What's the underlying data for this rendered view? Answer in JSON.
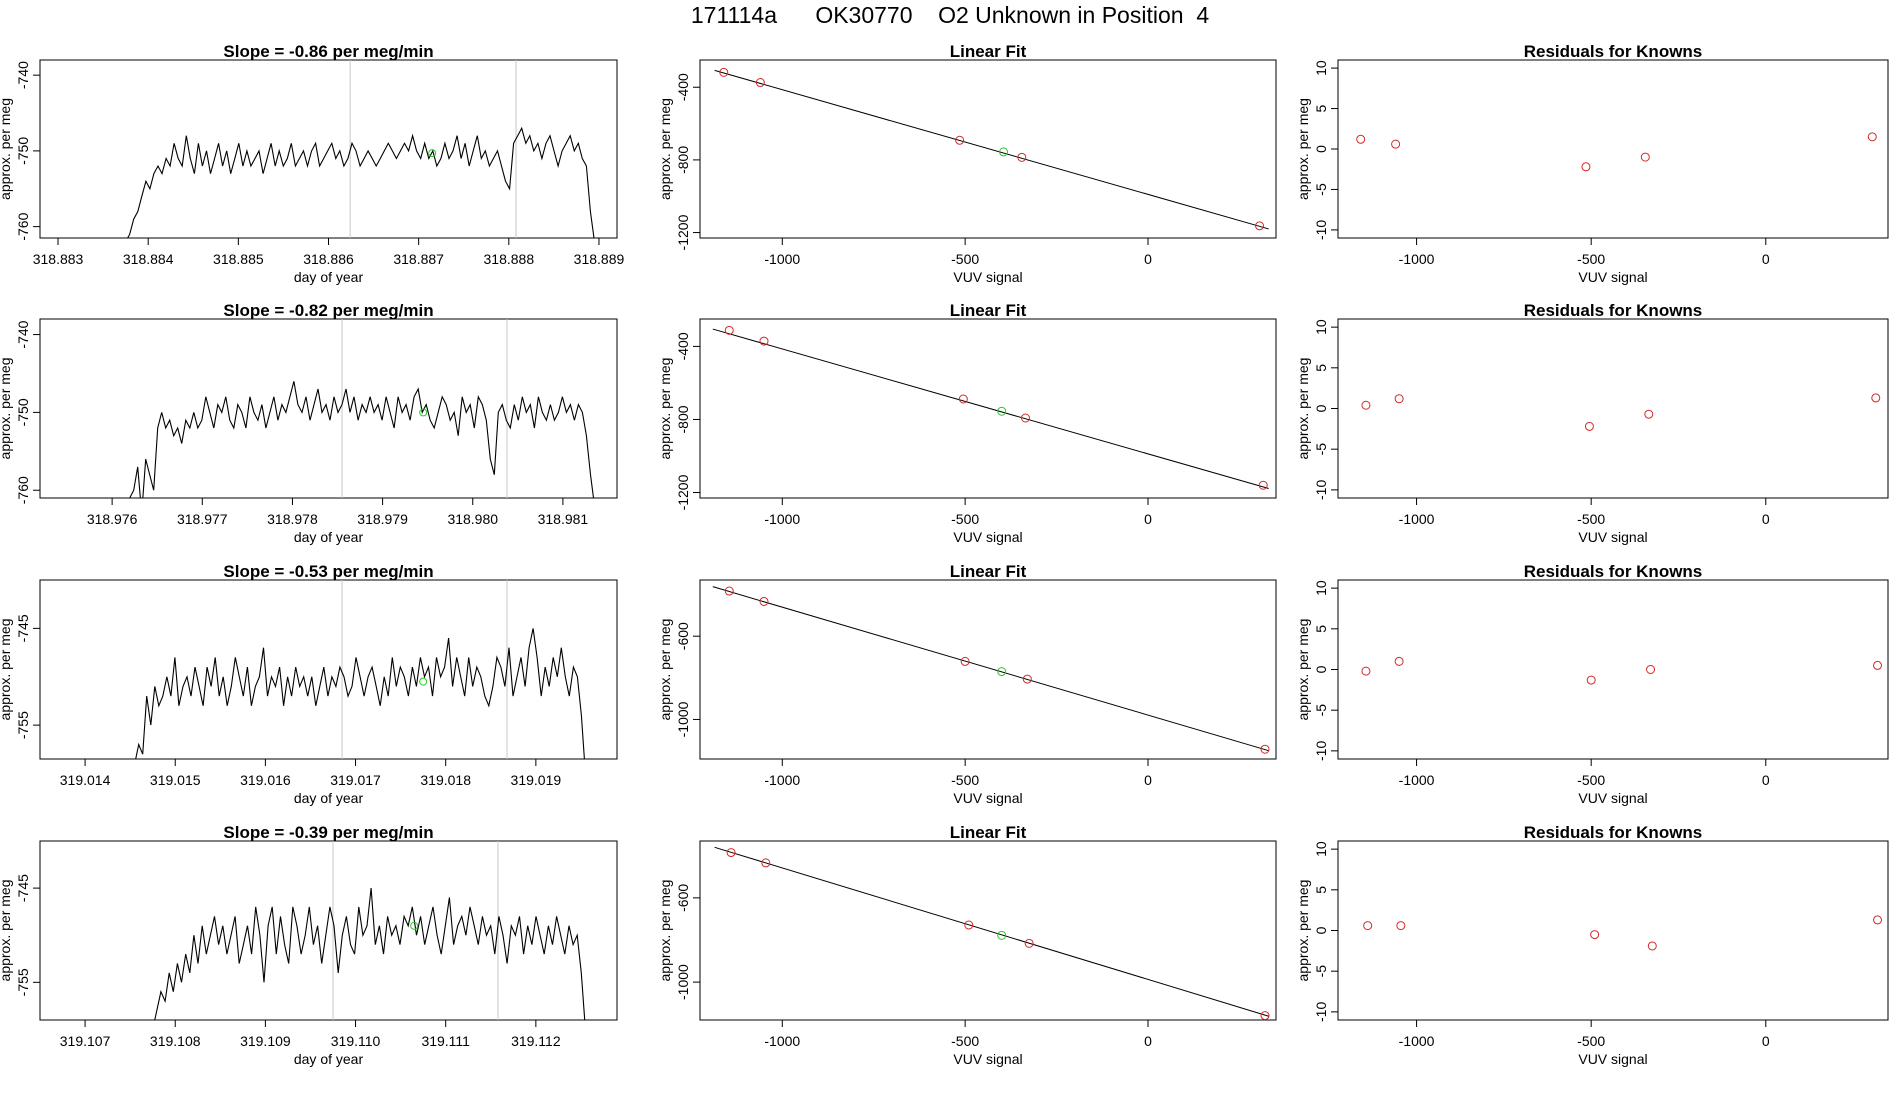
{
  "figure_title": "171114a      OK30770    O2 Unknown in Position  4",
  "colors": {
    "line": "#000000",
    "known_point": "#d62728",
    "unknown_point": "#22cc22",
    "guide": "#c8c8c8",
    "fit_line": "#000000"
  },
  "chart_data": [
    {
      "type": "line",
      "panel": "time-series-1",
      "title": "Slope =  -0.86  per meg/min",
      "xlabel": "day of year",
      "ylabel": "approx. per meg",
      "xlim": [
        318.8828,
        318.8892
      ],
      "ylim": [
        -761.5,
        -738
      ],
      "xticks": [
        "318.883",
        "318.884",
        "318.885",
        "318.886",
        "318.887",
        "318.888",
        "318.889"
      ],
      "yticks": [
        "-760",
        "-750",
        "-740"
      ],
      "guides": [
        318.88624,
        318.88808
      ],
      "unknown_point": {
        "x": 318.88715,
        "y": -750.3
      },
      "series": [
        {
          "x_start": 318.88375,
          "x_end": 318.88895,
          "values": [
            -762,
            -761,
            -759,
            -758,
            -756,
            -754,
            -755,
            -753,
            -752,
            -753,
            -751,
            -752,
            -749,
            -751,
            -752,
            -748,
            -751,
            -753,
            -749,
            -752,
            -750,
            -753,
            -751,
            -749,
            -752,
            -750,
            -753,
            -751,
            -749,
            -752,
            -750,
            -752,
            -751,
            -750,
            -753,
            -751,
            -749,
            -752,
            -750,
            -752,
            -751,
            -749,
            -752,
            -751,
            -750,
            -752,
            -750,
            -749,
            -752,
            -751,
            -750,
            -749,
            -751,
            -750,
            -752,
            -751,
            -749,
            -750,
            -752,
            -751,
            -750,
            -751,
            -752,
            -751,
            -750,
            -749,
            -750,
            -751,
            -750,
            -749,
            -750,
            -748,
            -750,
            -751,
            -749,
            -751,
            -750,
            -752,
            -751,
            -749,
            -751,
            -750,
            -748,
            -751,
            -749,
            -752,
            -750,
            -748,
            -751,
            -750,
            -752,
            -751,
            -750,
            -752,
            -754,
            -755,
            -749,
            -748,
            -747,
            -749,
            -748,
            -750,
            -749,
            -751,
            -749,
            -748,
            -750,
            -752,
            -750,
            -749,
            -748,
            -750,
            -749,
            -751,
            -752,
            -758,
            -762
          ]
        }
      ]
    },
    {
      "type": "scatter",
      "panel": "linear-fit-1",
      "title": "Linear Fit",
      "xlabel": "VUV signal",
      "ylabel": "approx. per meg",
      "xlim": [
        -1225,
        350
      ],
      "ylim": [
        -1230,
        -250
      ],
      "xticks": [
        -1000,
        -500,
        0
      ],
      "xtick_labels": [
        "-1000",
        "-500",
        "0"
      ],
      "yticks": [
        -400,
        -800,
        -1200
      ],
      "ytick_labels": [
        "-400",
        "-800",
        "-1200"
      ],
      "fit": {
        "x": [
          -1185,
          330
        ],
        "y": [
          -307,
          -1180
        ]
      },
      "knowns": {
        "x": [
          -1160,
          -1060,
          -515,
          -345,
          305
        ],
        "y": [
          -318,
          -374,
          -692,
          -786,
          -1163
        ]
      },
      "unknown": {
        "x": -395,
        "y": -756
      }
    },
    {
      "type": "scatter",
      "panel": "residuals-1",
      "title": "Residuals for Knowns",
      "xlabel": "VUV signal",
      "ylabel": "approx. per meg",
      "xlim": [
        -1225,
        350
      ],
      "ylim": [
        -11,
        11
      ],
      "xticks": [
        -1000,
        -500,
        0
      ],
      "xtick_labels": [
        "-1000",
        "-500",
        "0"
      ],
      "yticks": [
        10,
        5,
        0,
        -5,
        -10
      ],
      "ytick_labels": [
        "10",
        "5",
        "0",
        "-5",
        "-10"
      ],
      "knowns": {
        "x": [
          -1160,
          -1060,
          -515,
          -345,
          305
        ],
        "y": [
          1.2,
          0.6,
          -2.2,
          -1.0,
          1.5
        ]
      }
    },
    {
      "type": "line",
      "panel": "time-series-2",
      "title": "Slope =  -0.82  per meg/min",
      "xlabel": "day of year",
      "ylabel": "approx. per meg",
      "xlim": [
        318.9752,
        318.9816
      ],
      "ylim": [
        -761,
        -738
      ],
      "xticks": [
        "318.976",
        "318.977",
        "318.978",
        "318.979",
        "318.980",
        "318.981"
      ],
      "yticks": [
        "-760",
        "-750",
        "-740"
      ],
      "guides": [
        318.97855,
        318.98038
      ],
      "unknown_point": {
        "x": 318.97945,
        "y": -750
      },
      "series": [
        {
          "x_start": 318.97615,
          "x_end": 318.98135,
          "values": [
            -762,
            -761,
            -760,
            -757,
            -763,
            -756,
            -758,
            -760,
            -752,
            -750,
            -752,
            -751,
            -753,
            -752,
            -754,
            -751,
            -752,
            -750,
            -752,
            -751,
            -748,
            -750,
            -752,
            -749,
            -750,
            -748,
            -751,
            -752,
            -749,
            -750,
            -752,
            -748,
            -750,
            -751,
            -749,
            -752,
            -750,
            -748,
            -751,
            -749,
            -750,
            -748,
            -746,
            -749,
            -750,
            -748,
            -751,
            -749,
            -747,
            -750,
            -749,
            -751,
            -748,
            -750,
            -749,
            -747,
            -750,
            -748,
            -751,
            -749,
            -750,
            -748,
            -750,
            -749,
            -751,
            -748,
            -750,
            -752,
            -748,
            -750,
            -749,
            -751,
            -748,
            -747,
            -750,
            -749,
            -751,
            -752,
            -750,
            -748,
            -749,
            -751,
            -750,
            -753,
            -748,
            -750,
            -749,
            -752,
            -748,
            -749,
            -751,
            -756,
            -758,
            -750,
            -749,
            -751,
            -752,
            -749,
            -751,
            -748,
            -750,
            -749,
            -752,
            -748,
            -750,
            -751,
            -749,
            -751,
            -750,
            -748,
            -750,
            -749,
            -751,
            -749,
            -750,
            -753,
            -758,
            -762
          ]
        }
      ]
    },
    {
      "type": "scatter",
      "panel": "linear-fit-2",
      "title": "Linear Fit",
      "xlabel": "VUV signal",
      "ylabel": "approx. per meg",
      "xlim": [
        -1225,
        350
      ],
      "ylim": [
        -1230,
        -250
      ],
      "xticks": [
        -1000,
        -500,
        0
      ],
      "xtick_labels": [
        "-1000",
        "-500",
        "0"
      ],
      "yticks": [
        -400,
        -800,
        -1200
      ],
      "ytick_labels": [
        "-400",
        "-800",
        "-1200"
      ],
      "fit": {
        "x": [
          -1190,
          330
        ],
        "y": [
          -305,
          -1178
        ]
      },
      "knowns": {
        "x": [
          -1145,
          -1050,
          -505,
          -335,
          315
        ],
        "y": [
          -312,
          -371,
          -688,
          -792,
          -1160
        ]
      },
      "unknown": {
        "x": -400,
        "y": -755
      }
    },
    {
      "type": "scatter",
      "panel": "residuals-2",
      "title": "Residuals for Knowns",
      "xlabel": "VUV signal",
      "ylabel": "approx. per meg",
      "xlim": [
        -1225,
        350
      ],
      "ylim": [
        -11,
        11
      ],
      "xticks": [
        -1000,
        -500,
        0
      ],
      "xtick_labels": [
        "-1000",
        "-500",
        "0"
      ],
      "yticks": [
        10,
        5,
        0,
        -5,
        -10
      ],
      "ytick_labels": [
        "10",
        "5",
        "0",
        "-5",
        "-10"
      ],
      "knowns": {
        "x": [
          -1145,
          -1050,
          -505,
          -335,
          315
        ],
        "y": [
          0.4,
          1.2,
          -2.2,
          -0.7,
          1.3
        ]
      }
    },
    {
      "type": "line",
      "panel": "time-series-3",
      "title": "Slope =  -0.53  per meg/min",
      "xlabel": "day of year",
      "ylabel": "approx. per meg",
      "xlim": [
        319.0135,
        319.0199
      ],
      "ylim": [
        -758.5,
        -740
      ],
      "xticks": [
        "319.014",
        "319.015",
        "319.016",
        "319.017",
        "319.018",
        "319.019"
      ],
      "yticks": [
        "-755",
        "-745"
      ],
      "guides": [
        319.01685,
        319.01868
      ],
      "unknown_point": {
        "x": 319.01775,
        "y": -750.5
      },
      "series": [
        {
          "x_start": 319.01455,
          "x_end": 319.01955,
          "values": [
            -759,
            -757,
            -758,
            -752,
            -755,
            -751,
            -753,
            -752,
            -750,
            -752,
            -748,
            -753,
            -751,
            -750,
            -752,
            -749,
            -751,
            -753,
            -749,
            -751,
            -748,
            -752,
            -750,
            -753,
            -751,
            -748,
            -750,
            -752,
            -749,
            -753,
            -751,
            -750,
            -747,
            -752,
            -750,
            -751,
            -749,
            -753,
            -750,
            -752,
            -749,
            -751,
            -750,
            -752,
            -750,
            -753,
            -751,
            -749,
            -752,
            -750,
            -751,
            -749,
            -750,
            -752,
            -751,
            -748,
            -750,
            -752,
            -750,
            -749,
            -751,
            -753,
            -750,
            -752,
            -748,
            -751,
            -749,
            -750,
            -752,
            -749,
            -751,
            -748,
            -750,
            -749,
            -752,
            -748,
            -750,
            -749,
            -746,
            -751,
            -748,
            -750,
            -752,
            -748,
            -751,
            -749,
            -750,
            -752,
            -753,
            -751,
            -748,
            -749,
            -751,
            -747,
            -752,
            -750,
            -748,
            -751,
            -747,
            -745,
            -748,
            -752,
            -749,
            -751,
            -748,
            -750,
            -747,
            -750,
            -752,
            -749,
            -750,
            -754,
            -760
          ]
        }
      ]
    },
    {
      "type": "scatter",
      "panel": "linear-fit-3",
      "title": "Linear Fit",
      "xlabel": "VUV signal",
      "ylabel": "approx. per meg",
      "xlim": [
        -1225,
        350
      ],
      "ylim": [
        -1190,
        -330
      ],
      "xticks": [
        -1000,
        -500,
        0
      ],
      "xtick_labels": [
        "-1000",
        "-500",
        "0"
      ],
      "yticks": [
        -600,
        -1000
      ],
      "ytick_labels": [
        "-600",
        "-1000"
      ],
      "fit": {
        "x": [
          -1190,
          330
        ],
        "y": [
          -362,
          -1150
        ]
      },
      "knowns": {
        "x": [
          -1145,
          -1050,
          -500,
          -330,
          320
        ],
        "y": [
          -383,
          -433,
          -721,
          -806,
          -1143
        ]
      },
      "unknown": {
        "x": -400,
        "y": -770
      }
    },
    {
      "type": "scatter",
      "panel": "residuals-3",
      "title": "Residuals for Knowns",
      "xlabel": "VUV signal",
      "ylabel": "approx. per meg",
      "xlim": [
        -1225,
        350
      ],
      "ylim": [
        -11,
        11
      ],
      "xticks": [
        -1000,
        -500,
        0
      ],
      "xtick_labels": [
        "-1000",
        "-500",
        "0"
      ],
      "yticks": [
        10,
        5,
        0,
        -5,
        -10
      ],
      "ytick_labels": [
        "10",
        "5",
        "0",
        "-5",
        "-10"
      ],
      "knowns": {
        "x": [
          -1145,
          -1050,
          -500,
          -330,
          320
        ],
        "y": [
          -0.2,
          1.0,
          -1.3,
          0.0,
          0.5
        ]
      }
    },
    {
      "type": "line",
      "panel": "time-series-4",
      "title": "Slope =  -0.39  per meg/min",
      "xlabel": "day of year",
      "ylabel": "approx. per meg",
      "xlim": [
        319.1065,
        319.1129
      ],
      "ylim": [
        -759,
        -740
      ],
      "xticks": [
        "319.107",
        "319.108",
        "319.109",
        "319.110",
        "319.111",
        "319.112"
      ],
      "yticks": [
        "-755",
        "-745"
      ],
      "guides": [
        319.10975,
        319.11158
      ],
      "unknown_point": {
        "x": 319.11065,
        "y": -749
      },
      "series": [
        {
          "x_start": 319.10775,
          "x_end": 319.11255,
          "values": [
            -760,
            -758,
            -756,
            -757,
            -754,
            -756,
            -753,
            -755,
            -752,
            -754,
            -750,
            -753,
            -749,
            -752,
            -750,
            -748,
            -751,
            -749,
            -752,
            -750,
            -748,
            -753,
            -751,
            -749,
            -752,
            -747,
            -750,
            -755,
            -749,
            -747,
            -752,
            -748,
            -751,
            -753,
            -747,
            -749,
            -752,
            -750,
            -747,
            -751,
            -749,
            -753,
            -750,
            -747,
            -749,
            -754,
            -750,
            -748,
            -751,
            -752,
            -747,
            -750,
            -749,
            -745,
            -751,
            -749,
            -752,
            -748,
            -750,
            -749,
            -751,
            -748,
            -749,
            -747,
            -750,
            -748,
            -751,
            -749,
            -747,
            -750,
            -752,
            -749,
            -746,
            -751,
            -749,
            -748,
            -750,
            -747,
            -749,
            -751,
            -748,
            -750,
            -749,
            -752,
            -748,
            -750,
            -753,
            -749,
            -750,
            -748,
            -752,
            -749,
            -751,
            -748,
            -750,
            -752,
            -749,
            -751,
            -748,
            -750,
            -752,
            -749,
            -751,
            -750,
            -754,
            -760
          ]
        }
      ]
    },
    {
      "type": "scatter",
      "panel": "linear-fit-4",
      "title": "Linear Fit",
      "xlabel": "VUV signal",
      "ylabel": "approx. per meg",
      "xlim": [
        -1225,
        350
      ],
      "ylim": [
        -1180,
        -330
      ],
      "xticks": [
        -1000,
        -500,
        0
      ],
      "xtick_labels": [
        "-1000",
        "-500",
        "0"
      ],
      "yticks": [
        -600,
        -1000
      ],
      "ytick_labels": [
        "-600",
        "-1000"
      ],
      "fit": {
        "x": [
          -1185,
          330
        ],
        "y": [
          -360,
          -1162
        ]
      },
      "knowns": {
        "x": [
          -1140,
          -1045,
          -490,
          -325,
          320
        ],
        "y": [
          -385,
          -434,
          -729,
          -816,
          -1159
        ]
      },
      "unknown": {
        "x": -400,
        "y": -778
      }
    },
    {
      "type": "scatter",
      "panel": "residuals-4",
      "title": "Residuals for Knowns",
      "xlabel": "VUV signal",
      "ylabel": "approx. per meg",
      "xlim": [
        -1225,
        350
      ],
      "ylim": [
        -11,
        11
      ],
      "xticks": [
        -1000,
        -500,
        0
      ],
      "xtick_labels": [
        "-1000",
        "-500",
        "0"
      ],
      "yticks": [
        10,
        5,
        0,
        -5,
        -10
      ],
      "ytick_labels": [
        "10",
        "5",
        "0",
        "-5",
        "-10"
      ],
      "knowns": {
        "x": [
          -1140,
          -1045,
          -490,
          -325,
          320
        ],
        "y": [
          0.6,
          0.6,
          -0.5,
          -1.9,
          1.3
        ]
      }
    }
  ]
}
